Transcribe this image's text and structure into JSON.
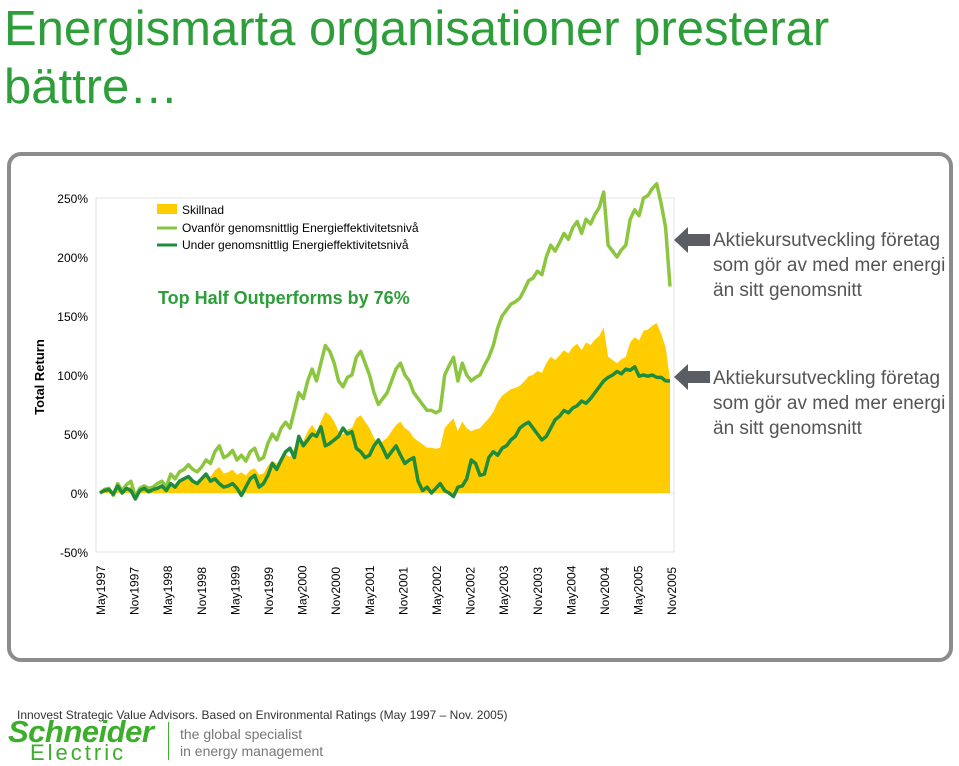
{
  "title": "Energismarta organisationer presterar bättre…",
  "annotations": {
    "top": "Aktiekursutveckling företag som gör av med mer energi än sitt genomsnitt",
    "bottom": "Aktiekursutveckling företag som gör av med mer energi än sitt genomsnitt"
  },
  "source": "Innovest Strategic Value Advisors. Based on Environmental Ratings (May 1997 – Nov. 2005)",
  "brand": {
    "name": "Schneider",
    "sub": "Electric",
    "tagline_1": "the global specialist",
    "tagline_2": "in energy management"
  },
  "colors": {
    "title": "#2e9e3a",
    "fill": "#ffcc00",
    "above": "#8cc63f",
    "below": "#1e8c3a",
    "brand": "#3dae2b"
  },
  "chart_data": {
    "type": "line",
    "title": "",
    "ylabel": "Total Return",
    "inset_text": "Top Half Outperforms by 76%",
    "ylim": [
      -50,
      250
    ],
    "yticks": [
      "250%",
      "200%",
      "150%",
      "100%",
      "50%",
      "0%",
      "-50%"
    ],
    "xticks": [
      "May1997",
      "Nov1997",
      "May1998",
      "Nov1998",
      "May1999",
      "Nov1999",
      "May2000",
      "Nov2000",
      "May2001",
      "Nov2001",
      "May2002",
      "Nov2002",
      "May2003",
      "Nov2003",
      "May2004",
      "Nov2004",
      "May2005",
      "Nov2005"
    ],
    "legend": [
      {
        "label": "Skillnad",
        "kind": "fill"
      },
      {
        "label": "Ovanför genomsnittlig Energieffektivitetsnivå",
        "kind": "line-light"
      },
      {
        "label": "Under genomsnittlig Energieffektivitetsnivå",
        "kind": "line-dark"
      }
    ],
    "series": [
      {
        "name": "Ovanför genomsnittlig Energieffektivitetsnivå",
        "values": [
          0,
          3,
          4,
          -2,
          8,
          2,
          7,
          10,
          -3,
          4,
          6,
          4,
          5,
          8,
          10,
          5,
          16,
          12,
          18,
          20,
          24,
          20,
          18,
          22,
          28,
          25,
          35,
          40,
          30,
          32,
          36,
          28,
          32,
          27,
          35,
          38,
          28,
          30,
          42,
          50,
          45,
          55,
          60,
          55,
          70,
          85,
          80,
          95,
          105,
          95,
          110,
          125,
          120,
          110,
          95,
          90,
          98,
          100,
          115,
          120,
          110,
          100,
          85,
          75,
          80,
          85,
          95,
          105,
          110,
          100,
          95,
          85,
          80,
          75,
          70,
          70,
          68,
          70,
          100,
          108,
          115,
          95,
          110,
          100,
          95,
          98,
          100,
          108,
          115,
          125,
          140,
          150,
          155,
          160,
          162,
          165,
          172,
          180,
          182,
          188,
          185,
          200,
          210,
          205,
          212,
          220,
          215,
          225,
          230,
          220,
          232,
          228,
          236,
          242,
          255,
          210,
          205,
          200,
          206,
          210,
          232,
          240,
          235,
          250,
          252,
          258,
          262,
          245,
          225,
          175
        ]
      },
      {
        "name": "Under genomsnittlig Energieffektivitetsnivå",
        "values": [
          0,
          2,
          3,
          -1,
          6,
          0,
          4,
          2,
          -5,
          2,
          4,
          1,
          3,
          4,
          6,
          2,
          8,
          5,
          10,
          12,
          14,
          10,
          8,
          12,
          16,
          10,
          12,
          8,
          5,
          6,
          8,
          4,
          -2,
          5,
          12,
          15,
          5,
          8,
          15,
          25,
          20,
          28,
          35,
          38,
          30,
          48,
          40,
          45,
          50,
          48,
          56,
          40,
          42,
          45,
          48,
          55,
          50,
          52,
          38,
          35,
          30,
          32,
          40,
          45,
          38,
          30,
          35,
          40,
          32,
          25,
          28,
          30,
          10,
          2,
          5,
          0,
          4,
          8,
          2,
          0,
          -3,
          5,
          6,
          12,
          28,
          25,
          15,
          16,
          30,
          35,
          32,
          38,
          40,
          45,
          48,
          55,
          58,
          60,
          55,
          50,
          45,
          48,
          55,
          62,
          65,
          70,
          68,
          72,
          74,
          78,
          76,
          80,
          85,
          90,
          95,
          98,
          100,
          103,
          101,
          105,
          104,
          107,
          99,
          100,
          99,
          100,
          98,
          98,
          95,
          95
        ]
      }
    ]
  }
}
